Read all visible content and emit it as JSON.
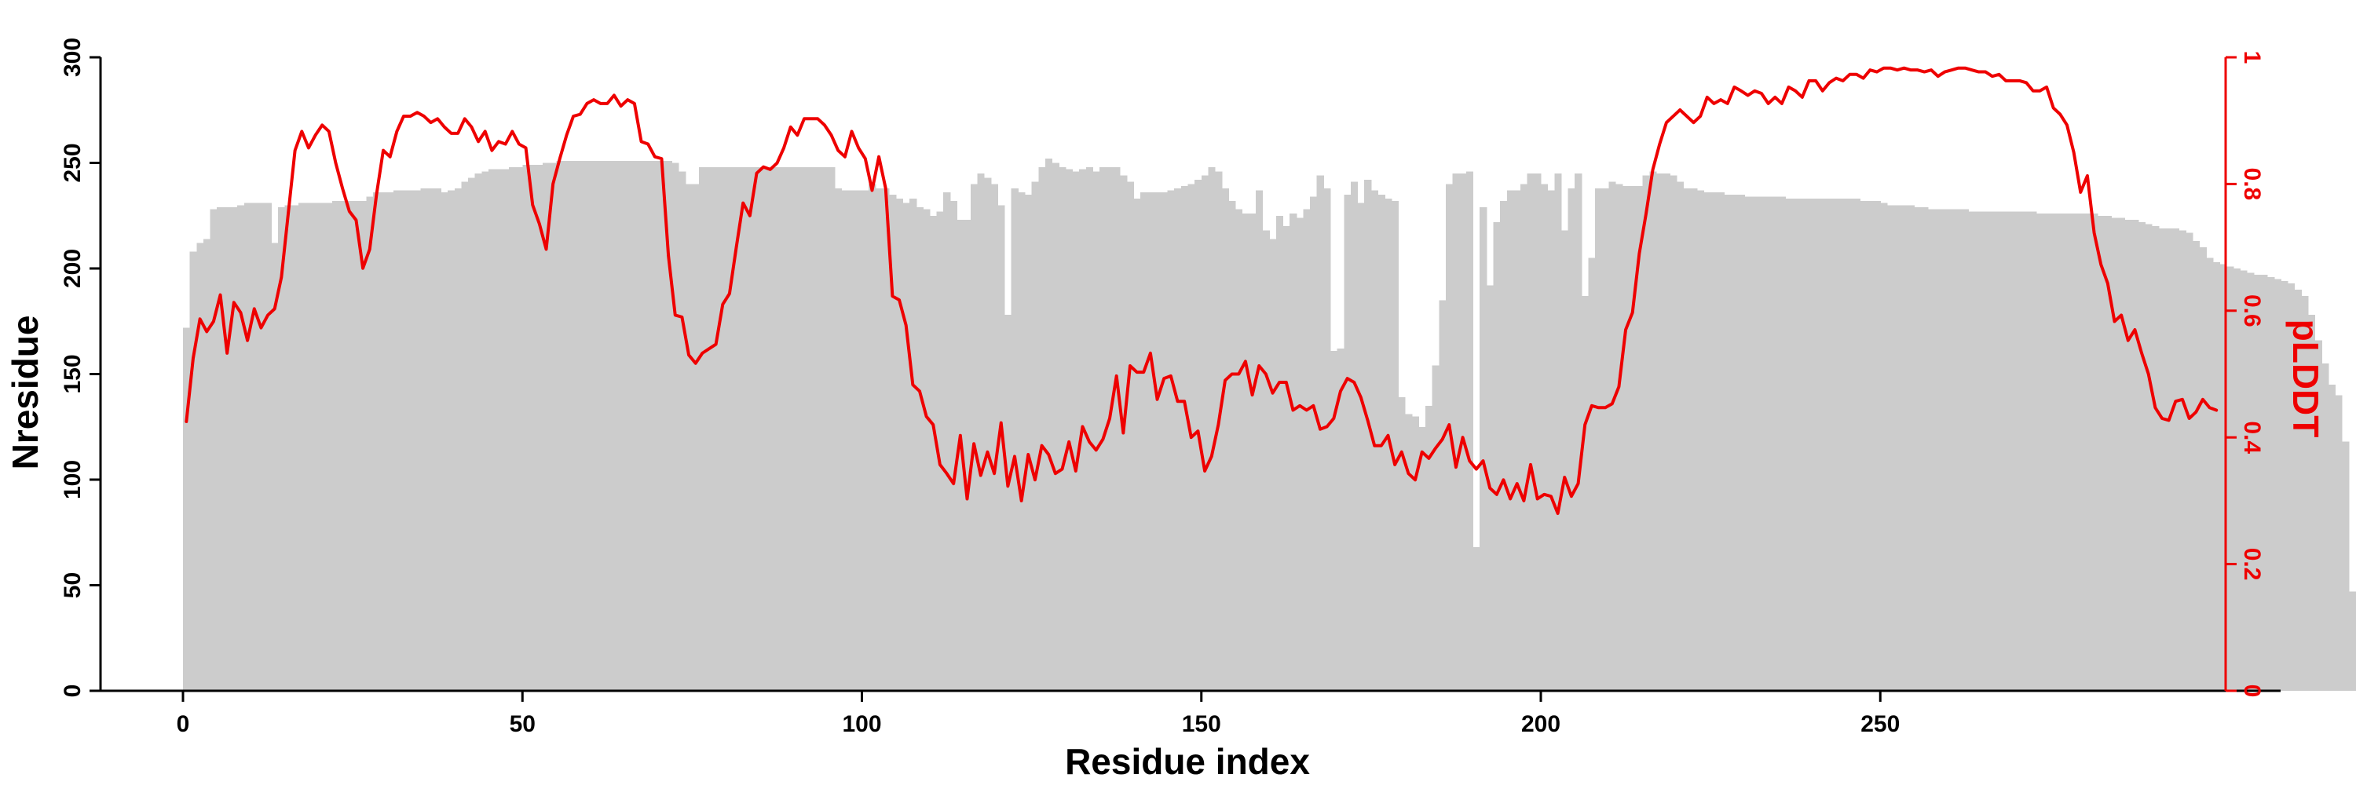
{
  "colors": {
    "bars": "#cccccc",
    "line": "#ee0000",
    "left_axis": "#000000",
    "right_axis": "#ee0000"
  },
  "chart_data": {
    "type": "bar",
    "title": "",
    "xlabel": "Residue index",
    "ylabel": "Nresidue",
    "y2label": "pLDDT",
    "xlim": [
      0,
      296
    ],
    "ylim": [
      0,
      300
    ],
    "y2lim": [
      0,
      1
    ],
    "xticks": [
      "0",
      "50",
      "100",
      "150",
      "200",
      "250"
    ],
    "yticks": [
      "0",
      "50",
      "100",
      "150",
      "200",
      "250",
      "300"
    ],
    "y2ticks": [
      "0",
      "0.2",
      "0.4",
      "0.6",
      "0.8",
      "1"
    ],
    "grid": false,
    "legend": "none",
    "series": [
      {
        "type": "bar",
        "axis": "left",
        "x_start": 0,
        "values": [
          172,
          208,
          212,
          214,
          228,
          229,
          229,
          229,
          230,
          231,
          231,
          231,
          231,
          212,
          229,
          230,
          230,
          231,
          231,
          231,
          231,
          231,
          232,
          232,
          232,
          232,
          232,
          234,
          236,
          236,
          236,
          237,
          237,
          237,
          237,
          238,
          238,
          238,
          236,
          237,
          238,
          241,
          243,
          245,
          246,
          247,
          247,
          247,
          248,
          248,
          249,
          249,
          249,
          250,
          250,
          251,
          251,
          251,
          251,
          251,
          251,
          251,
          251,
          251,
          251,
          251,
          251,
          251,
          251,
          251,
          251,
          251,
          250,
          246,
          240,
          240,
          248,
          248,
          248,
          248,
          248,
          248,
          248,
          248,
          248,
          248,
          248,
          248,
          248,
          248,
          248,
          248,
          248,
          248,
          248,
          248,
          238,
          237,
          237,
          237,
          237,
          240,
          238,
          238,
          235,
          233,
          231,
          233,
          229,
          228,
          225,
          227,
          236,
          232,
          223,
          223,
          240,
          245,
          243,
          240,
          230,
          178,
          238,
          236,
          235,
          241,
          248,
          252,
          250,
          248,
          247,
          246,
          247,
          248,
          246,
          248,
          248,
          248,
          244,
          241,
          233,
          236,
          236,
          236,
          236,
          237,
          238,
          239,
          240,
          242,
          244,
          248,
          246,
          238,
          232,
          228,
          226,
          226,
          237,
          218,
          214,
          225,
          220,
          226,
          224,
          228,
          234,
          244,
          238,
          161,
          162,
          235,
          241,
          231,
          242,
          237,
          235,
          233,
          232,
          139,
          131,
          130,
          125,
          135,
          154,
          185,
          240,
          245,
          245,
          246,
          68,
          229,
          192,
          222,
          232,
          237,
          237,
          240,
          245,
          245,
          240,
          237,
          245,
          218,
          238,
          245,
          187,
          205,
          238,
          238,
          241,
          240,
          239,
          239,
          239,
          244,
          246,
          245,
          245,
          244,
          241,
          238,
          238,
          237,
          236,
          236,
          236,
          235,
          235,
          235,
          234,
          234,
          234,
          234,
          234,
          234,
          233,
          233,
          233,
          233,
          233,
          233,
          233,
          233,
          233,
          233,
          233,
          232,
          232,
          232,
          231,
          230,
          230,
          230,
          230,
          229,
          229,
          228,
          228,
          228,
          228,
          228,
          228,
          227,
          227,
          227,
          227,
          227,
          227,
          227,
          227,
          227,
          227,
          226,
          226,
          226,
          226,
          226,
          226,
          226,
          226,
          226,
          225,
          225,
          224,
          224,
          223,
          223,
          222,
          221,
          220,
          219,
          219,
          219,
          218,
          217,
          213,
          210,
          205,
          203,
          202,
          201,
          200,
          199,
          198,
          197,
          197,
          196,
          195,
          194,
          193,
          190,
          187,
          178,
          166,
          155,
          145,
          140,
          118,
          47
        ]
      },
      {
        "type": "line",
        "axis": "right",
        "x_start": 0,
        "values": [
          0.425,
          0.525,
          0.587,
          0.567,
          0.583,
          0.625,
          0.533,
          0.613,
          0.597,
          0.553,
          0.603,
          0.573,
          0.593,
          0.603,
          0.653,
          0.753,
          0.853,
          0.883,
          0.857,
          0.877,
          0.893,
          0.883,
          0.833,
          0.793,
          0.757,
          0.743,
          0.667,
          0.697,
          0.783,
          0.853,
          0.843,
          0.883,
          0.907,
          0.907,
          0.913,
          0.907,
          0.897,
          0.903,
          0.89,
          0.88,
          0.88,
          0.903,
          0.89,
          0.867,
          0.883,
          0.853,
          0.867,
          0.863,
          0.883,
          0.863,
          0.857,
          0.767,
          0.737,
          0.697,
          0.8,
          0.84,
          0.877,
          0.907,
          0.91,
          0.927,
          0.933,
          0.927,
          0.927,
          0.94,
          0.923,
          0.933,
          0.927,
          0.867,
          0.863,
          0.843,
          0.84,
          0.687,
          0.593,
          0.59,
          0.53,
          0.517,
          0.533,
          0.54,
          0.547,
          0.61,
          0.627,
          0.7,
          0.77,
          0.75,
          0.817,
          0.827,
          0.823,
          0.833,
          0.857,
          0.89,
          0.877,
          0.903,
          0.903,
          0.903,
          0.893,
          0.877,
          0.853,
          0.843,
          0.883,
          0.857,
          0.84,
          0.79,
          0.843,
          0.793,
          0.623,
          0.617,
          0.577,
          0.483,
          0.473,
          0.433,
          0.42,
          0.357,
          0.343,
          0.327,
          0.403,
          0.303,
          0.39,
          0.34,
          0.377,
          0.343,
          0.423,
          0.323,
          0.37,
          0.3,
          0.373,
          0.333,
          0.387,
          0.373,
          0.343,
          0.35,
          0.393,
          0.347,
          0.417,
          0.393,
          0.38,
          0.397,
          0.43,
          0.497,
          0.407,
          0.513,
          0.503,
          0.503,
          0.533,
          0.46,
          0.493,
          0.497,
          0.457,
          0.457,
          0.4,
          0.41,
          0.347,
          0.37,
          0.42,
          0.49,
          0.5,
          0.5,
          0.52,
          0.467,
          0.513,
          0.5,
          0.47,
          0.487,
          0.487,
          0.443,
          0.45,
          0.443,
          0.45,
          0.413,
          0.417,
          0.43,
          0.473,
          0.493,
          0.487,
          0.463,
          0.427,
          0.387,
          0.387,
          0.403,
          0.357,
          0.377,
          0.343,
          0.333,
          0.377,
          0.367,
          0.383,
          0.397,
          0.42,
          0.353,
          0.4,
          0.363,
          0.35,
          0.363,
          0.32,
          0.31,
          0.333,
          0.303,
          0.327,
          0.3,
          0.357,
          0.303,
          0.31,
          0.307,
          0.28,
          0.337,
          0.307,
          0.327,
          0.42,
          0.45,
          0.447,
          0.447,
          0.453,
          0.48,
          0.57,
          0.597,
          0.69,
          0.753,
          0.823,
          0.863,
          0.897,
          0.907,
          0.917,
          0.907,
          0.897,
          0.907,
          0.937,
          0.927,
          0.933,
          0.927,
          0.953,
          0.947,
          0.94,
          0.947,
          0.943,
          0.927,
          0.937,
          0.927,
          0.953,
          0.947,
          0.937,
          0.963,
          0.963,
          0.947,
          0.96,
          0.967,
          0.963,
          0.973,
          0.973,
          0.967,
          0.98,
          0.977,
          0.983,
          0.983,
          0.98,
          0.983,
          0.98,
          0.98,
          0.977,
          0.98,
          0.97,
          0.977,
          0.98,
          0.983,
          0.983,
          0.98,
          0.977,
          0.977,
          0.97,
          0.973,
          0.963,
          0.963,
          0.963,
          0.96,
          0.947,
          0.947,
          0.953,
          0.92,
          0.91,
          0.893,
          0.85,
          0.787,
          0.813,
          0.723,
          0.673,
          0.643,
          0.583,
          0.593,
          0.553,
          0.57,
          0.533,
          0.5,
          0.447,
          0.43,
          0.427,
          0.457,
          0.46,
          0.43,
          0.44,
          0.46,
          0.447,
          0.443
        ]
      }
    ]
  }
}
